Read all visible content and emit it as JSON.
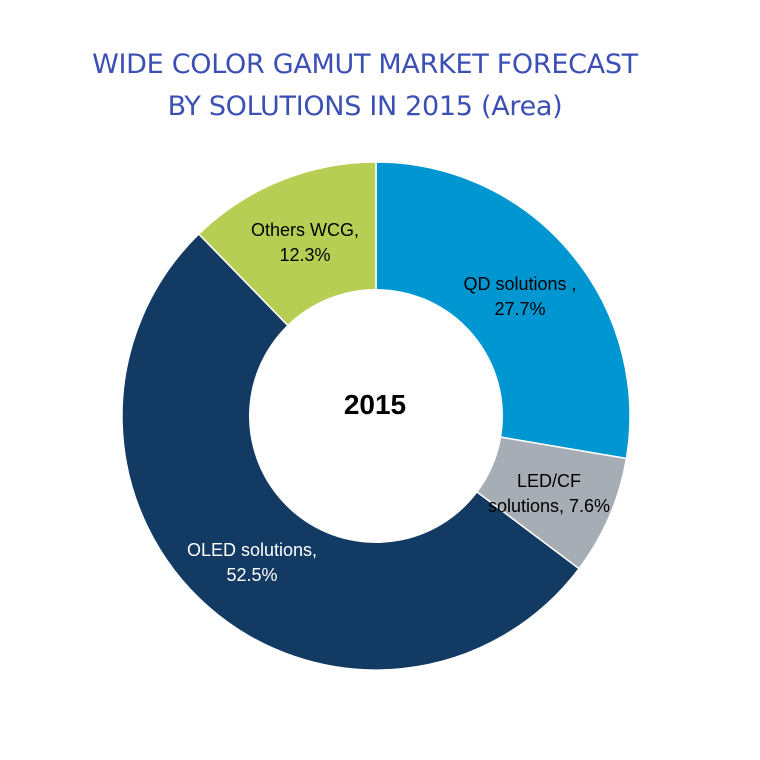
{
  "title_lines": [
    "WIDE COLOR GAMUT MARKET FORECAST",
    "BY SOLUTIONS IN 2015 (Area)"
  ],
  "colors": {
    "title": "#3c4fb4",
    "background": "#ffffff"
  },
  "chart_data": {
    "type": "pie",
    "variant": "donut",
    "title": "WIDE COLOR GAMUT MARKET FORECAST BY SOLUTIONS IN 2015 (Area)",
    "center_label": "2015",
    "slices": [
      {
        "key": "qd",
        "name": "QD solutions ,",
        "value": 27.7,
        "value_label": "27.7%",
        "color": "#0096d1",
        "label_color": "#000000"
      },
      {
        "key": "ledcf",
        "name": "LED/CF solutions,",
        "value": 7.6,
        "value_label": "7.6%",
        "color": "#a6adb4",
        "label_color": "#000000"
      },
      {
        "key": "oled",
        "name": "OLED solutions,",
        "value": 52.5,
        "value_label": "52.5%",
        "color": "#123a63",
        "label_color": "#ffffff"
      },
      {
        "key": "others",
        "name": "Others WCG,",
        "value": 12.3,
        "value_label": "12.3%",
        "color": "#b7ce55",
        "label_color": "#000000"
      }
    ],
    "label_lines": {
      "qd": [
        "QD solutions ,",
        "27.7%"
      ],
      "ledcf": [
        "LED/CF",
        "solutions, 7.6%"
      ],
      "oled": [
        "OLED solutions,",
        "52.5%"
      ],
      "others": [
        "Others WCG,",
        "12.3%"
      ]
    }
  }
}
